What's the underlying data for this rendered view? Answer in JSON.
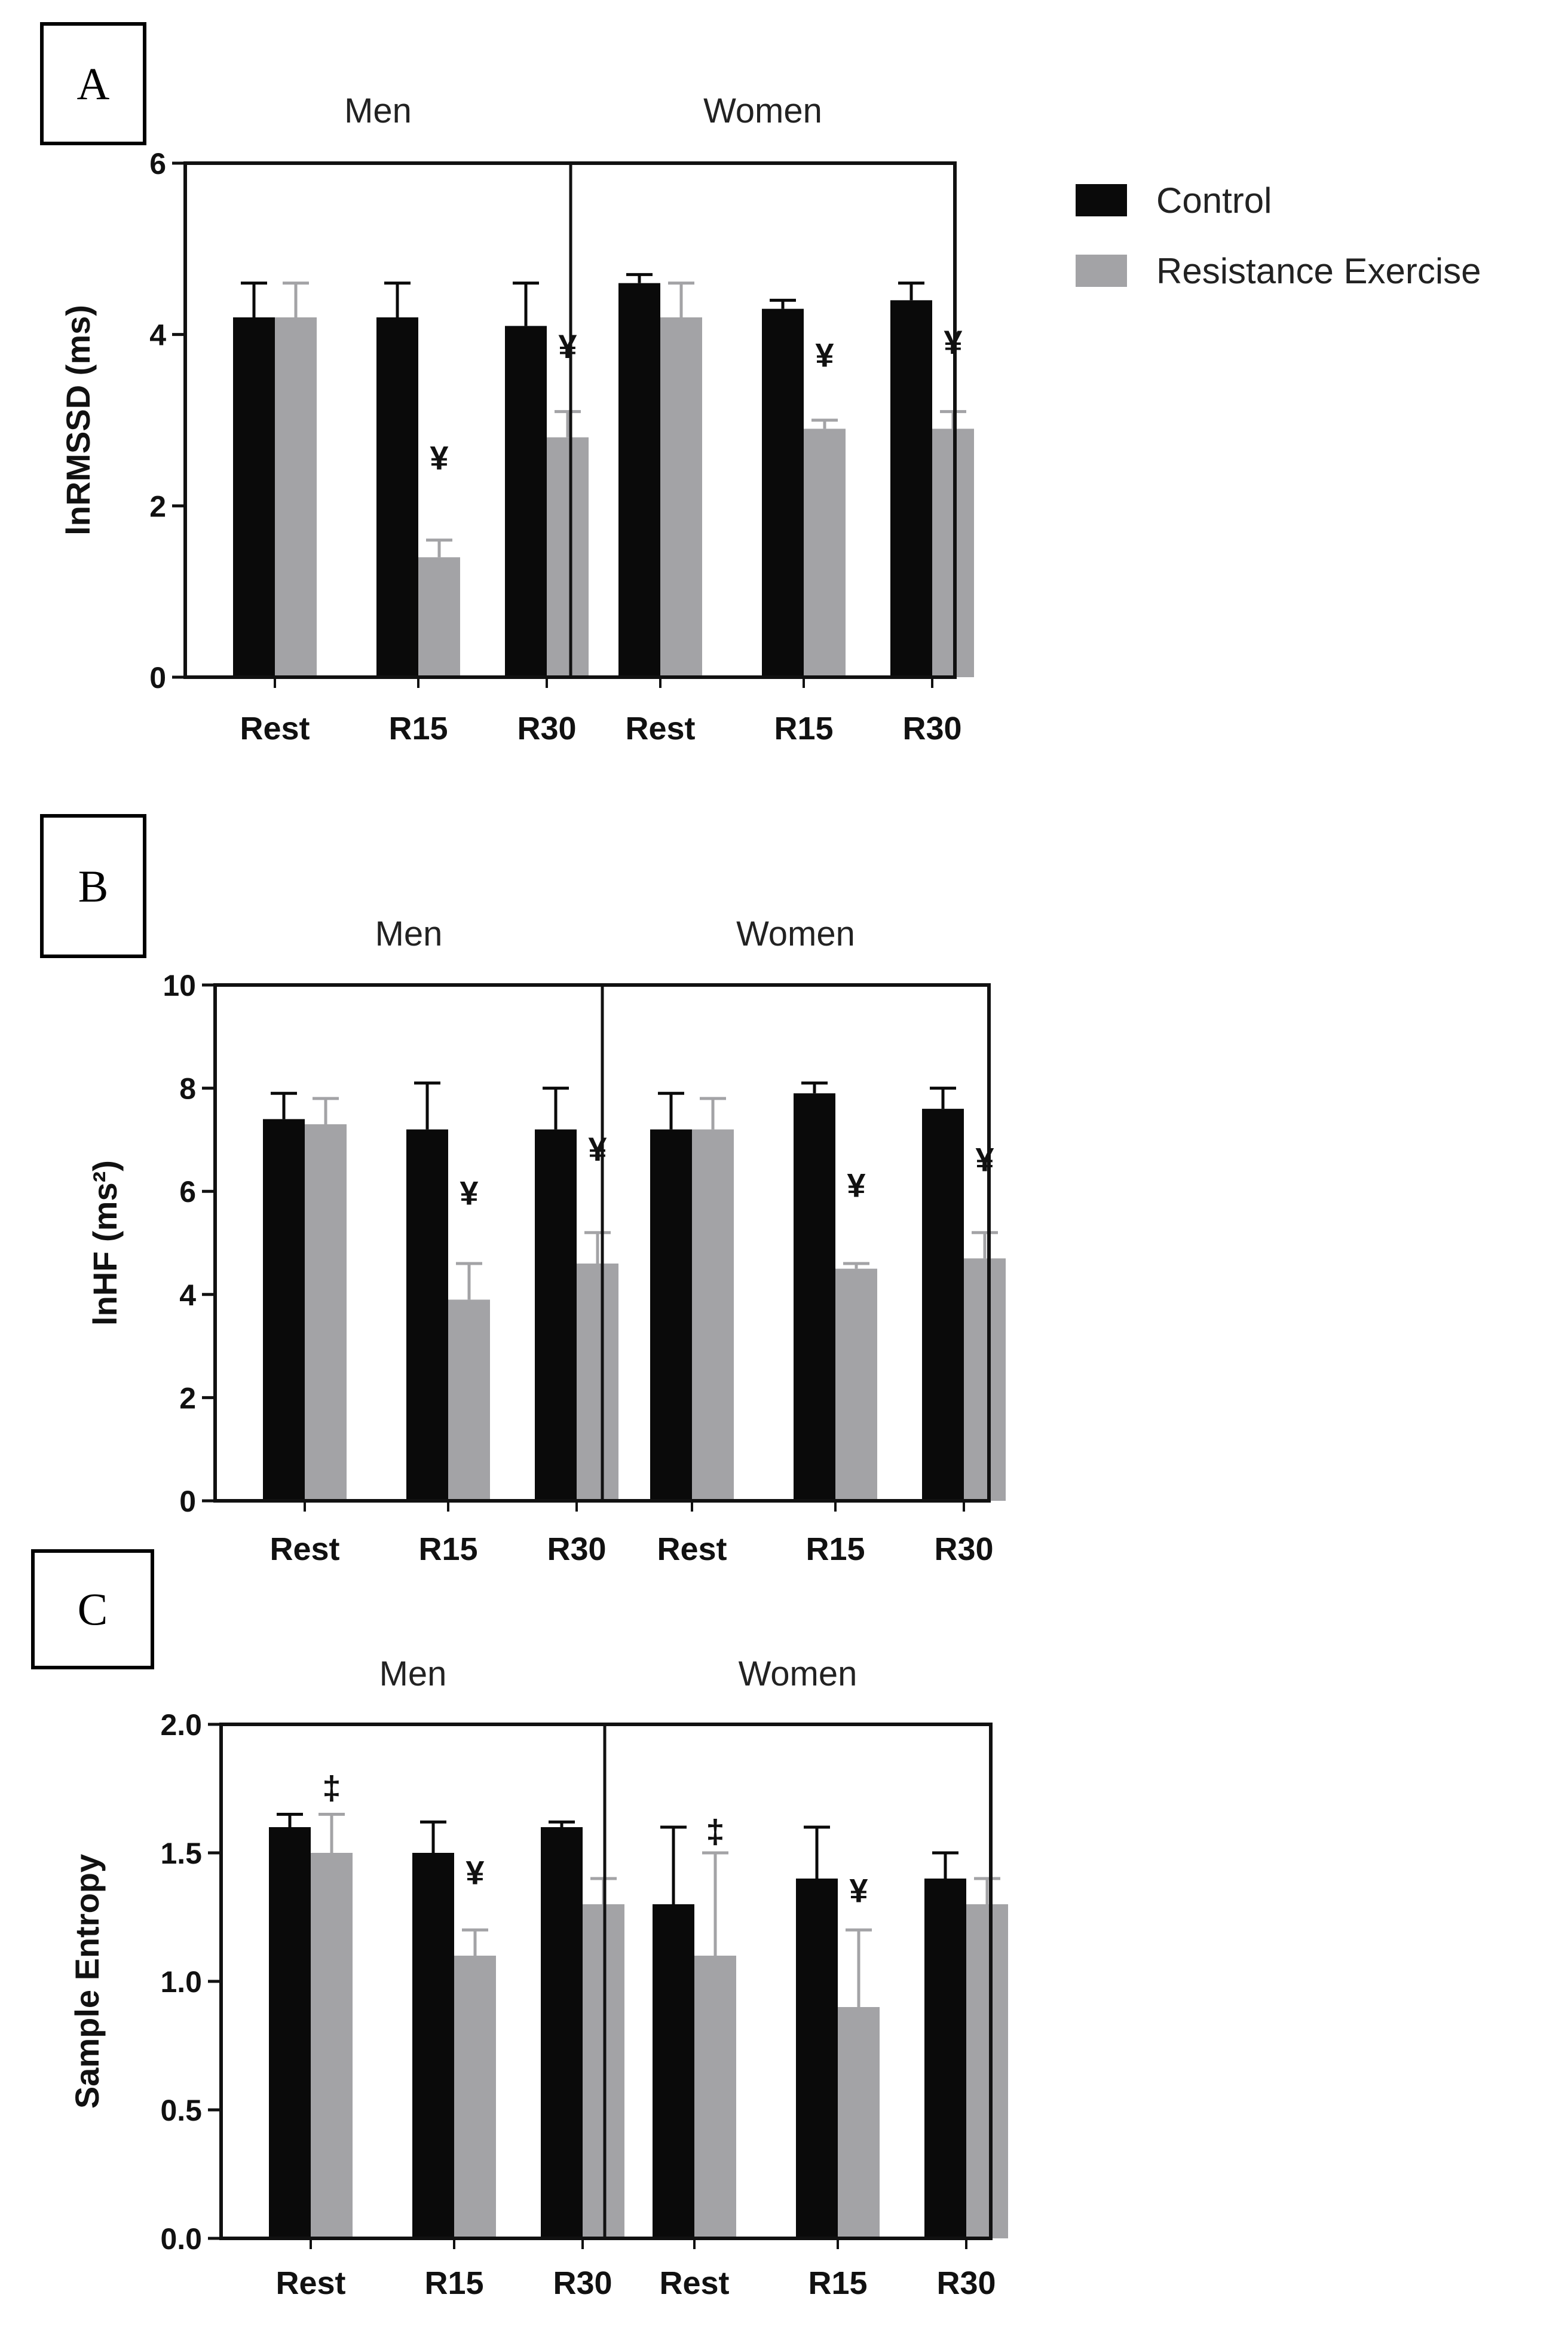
{
  "legend": {
    "items": [
      {
        "label": "Control",
        "color": "#0a0a0a"
      },
      {
        "label": "Resistance Exercise",
        "color": "#a3a3a6"
      }
    ]
  },
  "marks": {
    "significant_symbol": "¥",
    "double_dagger": "‡"
  },
  "chart_data": [
    {
      "type": "bar",
      "panel_label": "A",
      "ylabel": "lnRMSSD (ms)",
      "ylim": [
        0,
        6
      ],
      "yticks": [
        0,
        2,
        4,
        6
      ],
      "ytick_labels": [
        "0",
        "2",
        "4",
        "6"
      ],
      "groups": [
        {
          "title": "Men",
          "categories": [
            "Rest",
            "R15",
            "R30"
          ],
          "series": [
            {
              "name": "Control",
              "values": [
                4.2,
                4.2,
                4.1
              ],
              "errors": [
                0.4,
                0.4,
                0.5
              ]
            },
            {
              "name": "Resistance Exercise",
              "values": [
                4.2,
                1.4,
                2.8
              ],
              "errors": [
                0.4,
                0.2,
                0.3
              ]
            }
          ],
          "annotations": [
            {
              "category": "R15",
              "series": "Resistance Exercise",
              "symbol": "¥",
              "y": 2.55
            },
            {
              "category": "R30",
              "series": "Resistance Exercise",
              "symbol": "¥",
              "y": 3.85
            }
          ]
        },
        {
          "title": "Women",
          "categories": [
            "Rest",
            "R15",
            "R30"
          ],
          "series": [
            {
              "name": "Control",
              "values": [
                4.6,
                4.3,
                4.4
              ],
              "errors": [
                0.1,
                0.1,
                0.2
              ]
            },
            {
              "name": "Resistance Exercise",
              "values": [
                4.2,
                2.9,
                2.9
              ],
              "errors": [
                0.4,
                0.1,
                0.2
              ]
            }
          ],
          "annotations": [
            {
              "category": "R15",
              "series": "Resistance Exercise",
              "symbol": "¥",
              "y": 3.75
            },
            {
              "category": "R30",
              "series": "Resistance Exercise",
              "symbol": "¥",
              "y": 3.9
            }
          ]
        }
      ]
    },
    {
      "type": "bar",
      "panel_label": "B",
      "ylabel": "lnHF (ms²)",
      "ylim": [
        0,
        10
      ],
      "yticks": [
        0,
        2,
        4,
        6,
        8,
        10
      ],
      "ytick_labels": [
        "0",
        "2",
        "4",
        "6",
        "8",
        "10"
      ],
      "groups": [
        {
          "title": "Men",
          "categories": [
            "Rest",
            "R15",
            "R30"
          ],
          "series": [
            {
              "name": "Control",
              "values": [
                7.4,
                7.2,
                7.2
              ],
              "errors": [
                0.5,
                0.9,
                0.8
              ]
            },
            {
              "name": "Resistance Exercise",
              "values": [
                7.3,
                3.9,
                4.6
              ],
              "errors": [
                0.5,
                0.7,
                0.6
              ]
            }
          ],
          "annotations": [
            {
              "category": "R15",
              "series": "Resistance Exercise",
              "symbol": "¥",
              "y": 5.95
            },
            {
              "category": "R30",
              "series": "Resistance Exercise",
              "symbol": "¥",
              "y": 6.8
            }
          ]
        },
        {
          "title": "Women",
          "categories": [
            "Rest",
            "R15",
            "R30"
          ],
          "series": [
            {
              "name": "Control",
              "values": [
                7.2,
                7.9,
                7.6
              ],
              "errors": [
                0.7,
                0.2,
                0.4
              ]
            },
            {
              "name": "Resistance Exercise",
              "values": [
                7.2,
                4.5,
                4.7
              ],
              "errors": [
                0.6,
                0.1,
                0.5
              ]
            }
          ],
          "annotations": [
            {
              "category": "R15",
              "series": "Resistance Exercise",
              "symbol": "¥",
              "y": 6.1
            },
            {
              "category": "R30",
              "series": "Resistance Exercise",
              "symbol": "¥",
              "y": 6.6
            }
          ]
        }
      ]
    },
    {
      "type": "bar",
      "panel_label": "C",
      "ylabel": "Sample Entropy",
      "ylim": [
        0,
        2
      ],
      "yticks": [
        0,
        0.5,
        1,
        1.5,
        2
      ],
      "ytick_labels": [
        "0.0",
        "0.5",
        "1.0",
        "1.5",
        "2.0"
      ],
      "groups": [
        {
          "title": "Men",
          "categories": [
            "Rest",
            "R15",
            "R30"
          ],
          "series": [
            {
              "name": "Control",
              "values": [
                1.6,
                1.5,
                1.6
              ],
              "errors": [
                0.05,
                0.12,
                0.02
              ]
            },
            {
              "name": "Resistance Exercise",
              "values": [
                1.5,
                1.1,
                1.3
              ],
              "errors": [
                0.15,
                0.1,
                0.1
              ]
            }
          ],
          "annotations": [
            {
              "category": "Rest",
              "series": "Resistance Exercise",
              "symbol": "‡",
              "y": 1.75
            },
            {
              "category": "R15",
              "series": "Resistance Exercise",
              "symbol": "¥",
              "y": 1.42
            }
          ]
        },
        {
          "title": "Women",
          "categories": [
            "Rest",
            "R15",
            "R30"
          ],
          "series": [
            {
              "name": "Control",
              "values": [
                1.3,
                1.4,
                1.4
              ],
              "errors": [
                0.3,
                0.2,
                0.1
              ]
            },
            {
              "name": "Resistance Exercise",
              "values": [
                1.1,
                0.9,
                1.3
              ],
              "errors": [
                0.4,
                0.3,
                0.1
              ]
            }
          ],
          "annotations": [
            {
              "category": "Rest",
              "series": "Resistance Exercise",
              "symbol": "‡",
              "y": 1.58
            },
            {
              "category": "R15",
              "series": "Resistance Exercise",
              "symbol": "¥",
              "y": 1.35
            }
          ]
        }
      ]
    }
  ]
}
